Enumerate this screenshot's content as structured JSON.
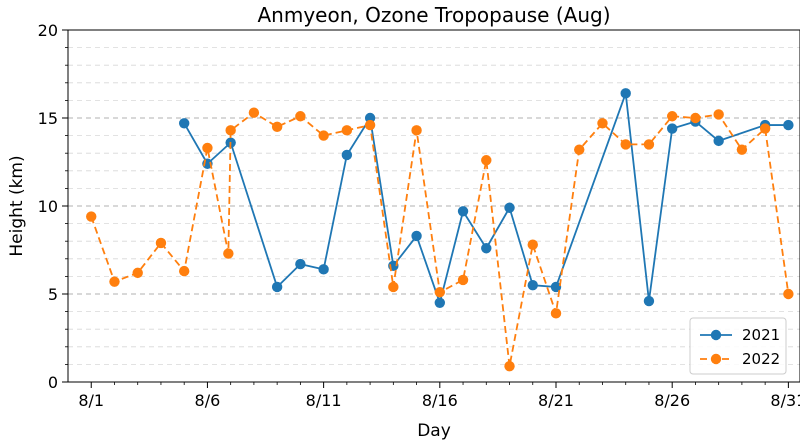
{
  "chart_data": {
    "type": "line",
    "title": "Anmyeon, Ozone Tropopause (Aug)",
    "xlabel": "Day",
    "ylabel": "Height (km)",
    "xlim": [
      0,
      31.5
    ],
    "ylim": [
      0,
      20
    ],
    "x_ticks": [
      1,
      6,
      11,
      16,
      21,
      26,
      31
    ],
    "x_tick_labels": [
      "8/1",
      "8/6",
      "8/11",
      "8/16",
      "8/21",
      "8/26",
      "8/31"
    ],
    "y_ticks": [
      0,
      5,
      10,
      15,
      20
    ],
    "y_tick_labels": [
      "0",
      "5",
      "10",
      "15",
      "20"
    ],
    "grid": "horizontal dashed (major and minor)",
    "legend_position": "lower-right",
    "series": [
      {
        "name": "2021",
        "color": "#1f77b4",
        "line_style": "solid",
        "points": [
          [
            5,
            14.7
          ],
          [
            6,
            12.4
          ],
          [
            7,
            13.6
          ],
          [
            9,
            5.4
          ],
          [
            10,
            6.7
          ],
          [
            11,
            6.4
          ],
          [
            12,
            12.9
          ],
          [
            13,
            15.0
          ],
          [
            14,
            6.6
          ],
          [
            15,
            8.3
          ],
          [
            16,
            4.5
          ],
          [
            17,
            9.7
          ],
          [
            18,
            7.6
          ],
          [
            19,
            9.9
          ],
          [
            20,
            5.5
          ],
          [
            21,
            5.4
          ],
          [
            24,
            16.4
          ],
          [
            25,
            4.6
          ],
          [
            26,
            14.4
          ],
          [
            27,
            14.8
          ],
          [
            28,
            13.7
          ],
          [
            30,
            14.6
          ],
          [
            31,
            14.6
          ]
        ]
      },
      {
        "name": "2022",
        "color": "#ff7f0e",
        "line_style": "dashed",
        "points": [
          [
            1,
            9.4
          ],
          [
            2,
            5.7
          ],
          [
            3,
            6.2
          ],
          [
            4,
            7.9
          ],
          [
            5,
            6.3
          ],
          [
            6,
            13.3
          ],
          [
            6.9,
            7.3
          ],
          [
            7,
            14.3
          ],
          [
            8,
            15.3
          ],
          [
            9,
            14.5
          ],
          [
            10,
            15.1
          ],
          [
            11,
            14.0
          ],
          [
            12,
            14.3
          ],
          [
            13,
            14.6
          ],
          [
            14,
            5.4
          ],
          [
            15,
            14.3
          ],
          [
            16,
            5.1
          ],
          [
            17,
            5.8
          ],
          [
            18,
            12.6
          ],
          [
            19,
            0.9
          ],
          [
            20,
            7.8
          ],
          [
            21,
            3.9
          ],
          [
            22,
            13.2
          ],
          [
            23,
            14.7
          ],
          [
            24,
            13.5
          ],
          [
            25,
            13.5
          ],
          [
            26,
            15.1
          ],
          [
            27,
            15.0
          ],
          [
            28,
            15.2
          ],
          [
            29,
            13.2
          ],
          [
            30,
            14.4
          ],
          [
            31,
            5.0
          ]
        ]
      }
    ]
  }
}
